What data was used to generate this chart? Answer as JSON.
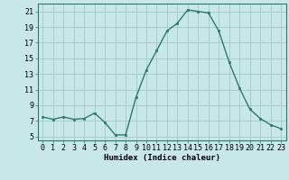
{
  "x": [
    0,
    1,
    2,
    3,
    4,
    5,
    6,
    7,
    8,
    9,
    10,
    11,
    12,
    13,
    14,
    15,
    16,
    17,
    18,
    19,
    20,
    21,
    22,
    23
  ],
  "y": [
    7.5,
    7.2,
    7.5,
    7.2,
    7.3,
    8.0,
    6.8,
    5.2,
    5.2,
    10.0,
    13.5,
    16.0,
    18.5,
    19.5,
    21.2,
    21.0,
    20.8,
    18.5,
    14.5,
    11.2,
    8.5,
    7.3,
    6.5,
    6.0
  ],
  "xlabel": "Humidex (Indice chaleur)",
  "ylabel_ticks": [
    5,
    7,
    9,
    11,
    13,
    15,
    17,
    19,
    21
  ],
  "xlim": [
    -0.5,
    23.5
  ],
  "ylim": [
    4.5,
    22.0
  ],
  "bg_color": "#c8e8e8",
  "line_color": "#2a7a6a",
  "grid_color": "#aacccc",
  "xlabel_fontsize": 6.5,
  "tick_fontsize": 6.0
}
